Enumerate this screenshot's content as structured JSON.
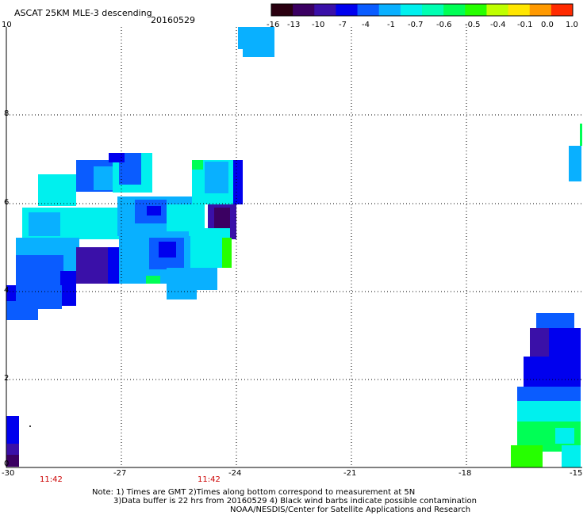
{
  "header": {
    "title": "ASCAT 25KM MLE-3 descending",
    "date": "20160529"
  },
  "colorbar": {
    "colors": [
      "#2a0010",
      "#3b0062",
      "#3a10a8",
      "#0000ee",
      "#0a5cff",
      "#09b0ff",
      "#00f0ee",
      "#00ffb2",
      "#00ff55",
      "#26ff00",
      "#bfff00",
      "#ffe600",
      "#ff9900",
      "#ff2a00"
    ],
    "tick_labels": [
      "-16",
      "-13",
      "-10",
      "-7",
      "-4",
      "-1",
      "-0.7",
      "-0.6",
      "-0.5",
      "-0.4",
      "-0.1",
      "0.0",
      "1.0"
    ]
  },
  "axes": {
    "x_ticks": [
      "-30",
      "-27",
      "-24",
      "-21",
      "-18",
      "-15"
    ],
    "y_ticks": [
      "0",
      "2",
      "4",
      "6",
      "8",
      "10"
    ]
  },
  "times": [
    "11:42",
    "11:42"
  ],
  "notes": {
    "line1": "Note: 1) Times are GMT 2)Times along bottom correspond to measurement at 5N",
    "line2": "3)Data buffer is 22 hrs from 20160529 4) Black wind barbs indicate possible contamination",
    "line3": "NOAA/NESDIS/Center for Satellite Applications and Research"
  }
}
